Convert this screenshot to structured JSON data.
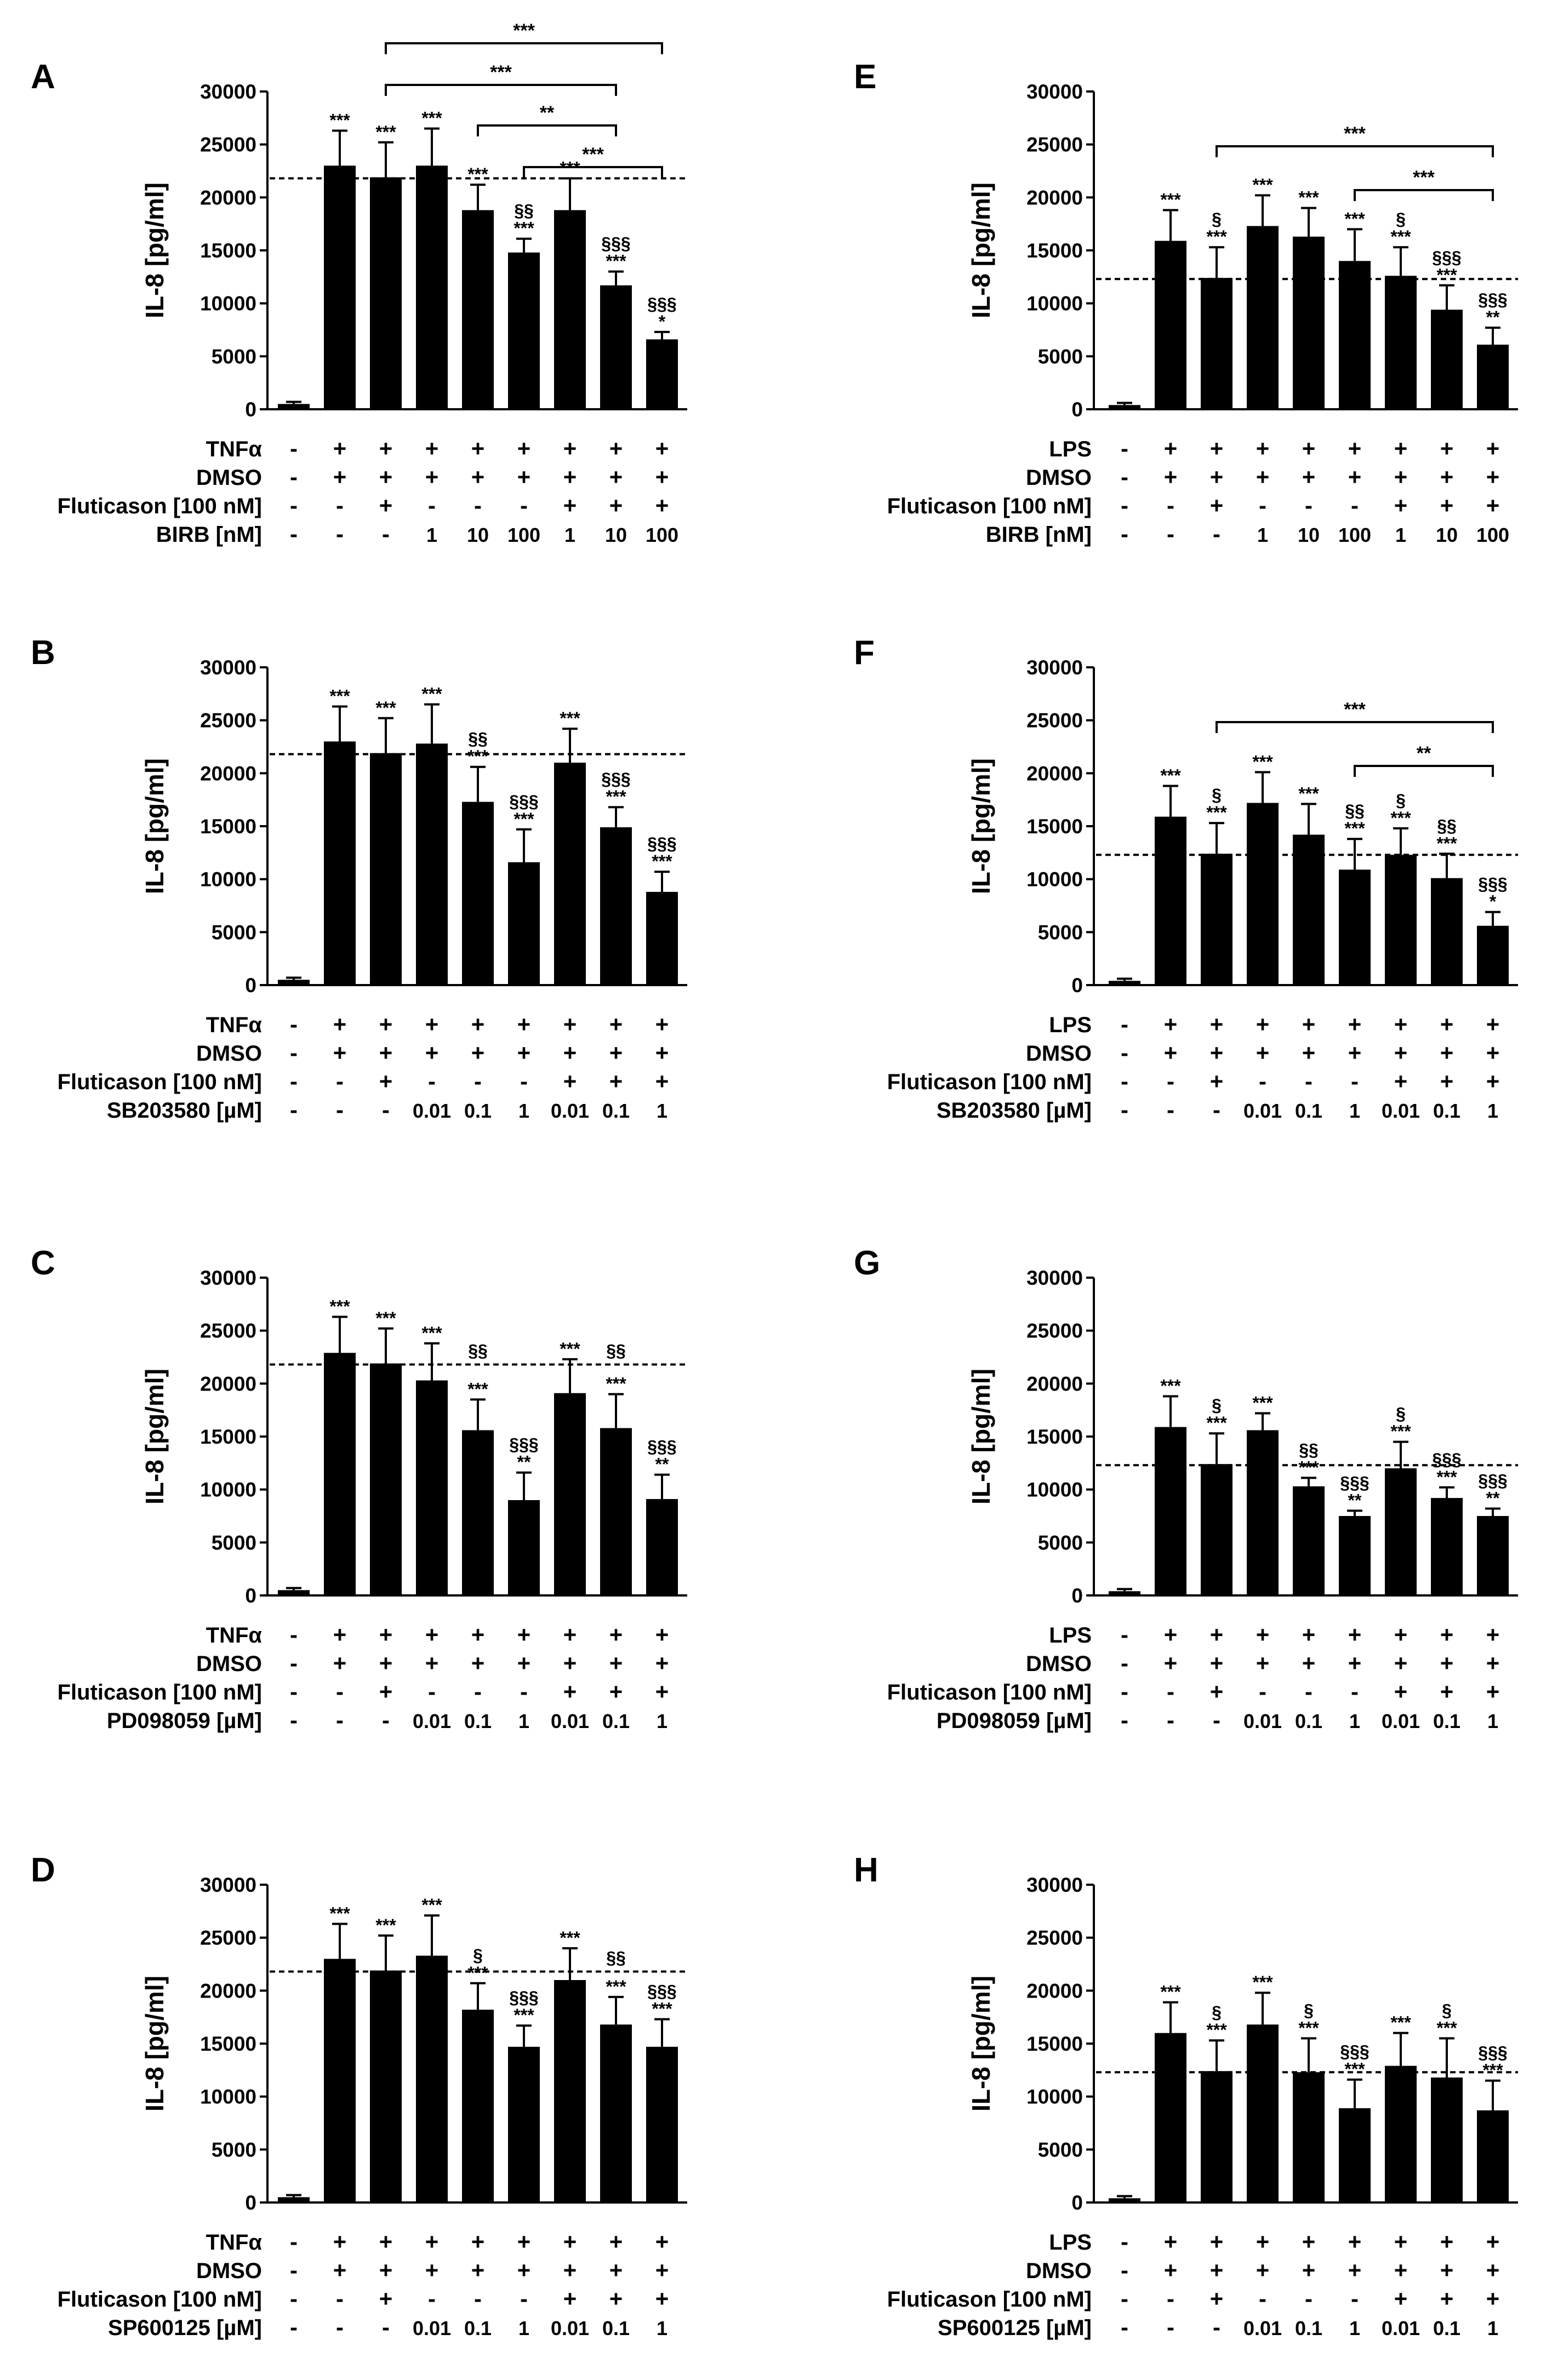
{
  "chart_data": [
    {
      "panel": "A",
      "type": "bar",
      "ylabel": "IL-8 [pg/ml]",
      "yticks": [
        "0",
        "5000",
        "10000",
        "15000",
        "20000",
        "25000",
        "30000"
      ],
      "ylim": [
        0,
        30000
      ],
      "reference_line": 21800,
      "values": [
        500,
        23000,
        21900,
        23000,
        18800,
        14800,
        18800,
        11700,
        6600
      ],
      "errors": [
        200,
        3300,
        3300,
        3500,
        2400,
        1300,
        3000,
        1300,
        700
      ],
      "annotations": [
        [],
        [
          "***"
        ],
        [
          "***"
        ],
        [
          "***"
        ],
        [
          "***"
        ],
        [
          "§§",
          "***"
        ],
        [
          "***"
        ],
        [
          "§§§",
          "***"
        ],
        [
          "§§§",
          "*"
        ]
      ],
      "brackets": [
        {
          "from": 2,
          "to": 8,
          "label": "***"
        },
        {
          "from": 2,
          "to": 7,
          "label": "***"
        },
        {
          "from": 4,
          "to": 7,
          "label": "**"
        },
        {
          "from": 5,
          "to": 8,
          "label": "***"
        }
      ],
      "rows": [
        {
          "label": "TNFα",
          "values": [
            "-",
            "+",
            "+",
            "+",
            "+",
            "+",
            "+",
            "+",
            "+"
          ]
        },
        {
          "label": "DMSO",
          "values": [
            "-",
            "+",
            "+",
            "+",
            "+",
            "+",
            "+",
            "+",
            "+"
          ]
        },
        {
          "label": "Fluticason [100 nM]",
          "values": [
            "-",
            "-",
            "+",
            "-",
            "-",
            "-",
            "+",
            "+",
            "+"
          ]
        },
        {
          "label": "BIRB [nM]",
          "values": [
            "-",
            "-",
            "-",
            "1",
            "10",
            "100",
            "1",
            "10",
            "100"
          ]
        }
      ]
    },
    {
      "panel": "B",
      "type": "bar",
      "ylabel": "IL-8 [pg/ml]",
      "yticks": [
        "0",
        "5000",
        "10000",
        "15000",
        "20000",
        "25000",
        "30000"
      ],
      "ylim": [
        0,
        30000
      ],
      "reference_line": 21800,
      "values": [
        500,
        23000,
        21900,
        22800,
        17300,
        11600,
        21000,
        14900,
        8800
      ],
      "errors": [
        200,
        3300,
        3300,
        3700,
        3300,
        3100,
        3200,
        1900,
        1900
      ],
      "annotations": [
        [],
        [
          "***"
        ],
        [
          "***"
        ],
        [
          "***"
        ],
        [
          "§§",
          "***"
        ],
        [
          "§§§",
          "***"
        ],
        [
          "***"
        ],
        [
          "§§§",
          "***"
        ],
        [
          "§§§",
          "***"
        ]
      ],
      "brackets": [],
      "rows": [
        {
          "label": "TNFα",
          "values": [
            "-",
            "+",
            "+",
            "+",
            "+",
            "+",
            "+",
            "+",
            "+"
          ]
        },
        {
          "label": "DMSO",
          "values": [
            "-",
            "+",
            "+",
            "+",
            "+",
            "+",
            "+",
            "+",
            "+"
          ]
        },
        {
          "label": "Fluticason [100 nM]",
          "values": [
            "-",
            "-",
            "+",
            "-",
            "-",
            "-",
            "+",
            "+",
            "+"
          ]
        },
        {
          "label": "SB203580 [µM]",
          "values": [
            "-",
            "-",
            "-",
            "0.01",
            "0.1",
            "1",
            "0.01",
            "0.1",
            "1"
          ]
        }
      ]
    },
    {
      "panel": "C",
      "type": "bar",
      "ylabel": "IL-8 [pg/ml]",
      "yticks": [
        "0",
        "5000",
        "10000",
        "15000",
        "20000",
        "25000",
        "30000"
      ],
      "ylim": [
        0,
        30000
      ],
      "reference_line": 21800,
      "values": [
        500,
        22900,
        21900,
        20300,
        15600,
        9000,
        19100,
        15800,
        9100
      ],
      "errors": [
        200,
        3400,
        3300,
        3500,
        2900,
        2600,
        3200,
        3200,
        2300
      ],
      "annotations": [
        [],
        [
          "***"
        ],
        [
          "***"
        ],
        [
          "***"
        ],
        [
          "***"
        ],
        [
          "§§§",
          "**"
        ],
        [
          "***"
        ],
        [
          "***"
        ],
        [
          "§§§",
          "**"
        ]
      ],
      "extra_marks": [
        {
          "index": 4,
          "label": "§§"
        },
        {
          "index": 7,
          "label": "§§"
        }
      ],
      "brackets": [],
      "rows": [
        {
          "label": "TNFα",
          "values": [
            "-",
            "+",
            "+",
            "+",
            "+",
            "+",
            "+",
            "+",
            "+"
          ]
        },
        {
          "label": "DMSO",
          "values": [
            "-",
            "+",
            "+",
            "+",
            "+",
            "+",
            "+",
            "+",
            "+"
          ]
        },
        {
          "label": "Fluticason [100 nM]",
          "values": [
            "-",
            "-",
            "+",
            "-",
            "-",
            "-",
            "+",
            "+",
            "+"
          ]
        },
        {
          "label": "PD098059 [µM]",
          "values": [
            "-",
            "-",
            "-",
            "0.01",
            "0.1",
            "1",
            "0.01",
            "0.1",
            "1"
          ]
        }
      ]
    },
    {
      "panel": "D",
      "type": "bar",
      "ylabel": "IL-8 [pg/ml]",
      "yticks": [
        "0",
        "5000",
        "10000",
        "15000",
        "20000",
        "25000",
        "30000"
      ],
      "ylim": [
        0,
        30000
      ],
      "reference_line": 21800,
      "values": [
        500,
        23000,
        21900,
        23300,
        18200,
        14700,
        21000,
        16800,
        14700
      ],
      "errors": [
        200,
        3300,
        3300,
        3800,
        2500,
        2000,
        3000,
        2600,
        2600
      ],
      "annotations": [
        [],
        [
          "***"
        ],
        [
          "***"
        ],
        [
          "***"
        ],
        [
          "§",
          "***"
        ],
        [
          "§§§",
          "***"
        ],
        [
          "***"
        ],
        [
          "***"
        ],
        [
          "§§§",
          "***"
        ]
      ],
      "extra_marks": [
        {
          "index": 7,
          "label": "§§"
        }
      ],
      "brackets": [],
      "rows": [
        {
          "label": "TNFα",
          "values": [
            "-",
            "+",
            "+",
            "+",
            "+",
            "+",
            "+",
            "+",
            "+"
          ]
        },
        {
          "label": "DMSO",
          "values": [
            "-",
            "+",
            "+",
            "+",
            "+",
            "+",
            "+",
            "+",
            "+"
          ]
        },
        {
          "label": "Fluticason [100 nM]",
          "values": [
            "-",
            "-",
            "+",
            "-",
            "-",
            "-",
            "+",
            "+",
            "+"
          ]
        },
        {
          "label": "SP600125 [µM]",
          "values": [
            "-",
            "-",
            "-",
            "0.01",
            "0.1",
            "1",
            "0.01",
            "0.1",
            "1"
          ]
        }
      ]
    },
    {
      "panel": "E",
      "type": "bar",
      "ylabel": "IL-8 [pg/ml]",
      "yticks": [
        "0",
        "5000",
        "10000",
        "15000",
        "20000",
        "25000",
        "30000"
      ],
      "ylim": [
        0,
        30000
      ],
      "reference_line": 12300,
      "values": [
        400,
        15900,
        12400,
        17300,
        16300,
        14000,
        12600,
        9400,
        6100
      ],
      "errors": [
        200,
        2900,
        2900,
        2900,
        2700,
        3000,
        2700,
        2300,
        1600
      ],
      "annotations": [
        [],
        [
          "***"
        ],
        [
          "§",
          "***"
        ],
        [
          "***"
        ],
        [
          "***"
        ],
        [
          "***"
        ],
        [
          "§",
          "***"
        ],
        [
          "§§§",
          "***"
        ],
        [
          "§§§",
          "**"
        ]
      ],
      "brackets": [
        {
          "from": 2,
          "to": 8,
          "label": "***"
        },
        {
          "from": 5,
          "to": 8,
          "label": "***"
        }
      ],
      "rows": [
        {
          "label": "LPS",
          "values": [
            "-",
            "+",
            "+",
            "+",
            "+",
            "+",
            "+",
            "+",
            "+"
          ]
        },
        {
          "label": "DMSO",
          "values": [
            "-",
            "+",
            "+",
            "+",
            "+",
            "+",
            "+",
            "+",
            "+"
          ]
        },
        {
          "label": "Fluticason [100 nM]",
          "values": [
            "-",
            "-",
            "+",
            "-",
            "-",
            "-",
            "+",
            "+",
            "+"
          ]
        },
        {
          "label": "BIRB [nM]",
          "values": [
            "-",
            "-",
            "-",
            "1",
            "10",
            "100",
            "1",
            "10",
            "100"
          ]
        }
      ]
    },
    {
      "panel": "F",
      "type": "bar",
      "ylabel": "IL-8 [pg/ml]",
      "yticks": [
        "0",
        "5000",
        "10000",
        "15000",
        "20000",
        "25000",
        "30000"
      ],
      "ylim": [
        0,
        30000
      ],
      "reference_line": 12300,
      "values": [
        400,
        15900,
        12400,
        17200,
        14200,
        10900,
        12300,
        10100,
        5600
      ],
      "errors": [
        200,
        2900,
        2900,
        2900,
        2900,
        2900,
        2500,
        2300,
        1300
      ],
      "annotations": [
        [],
        [
          "***"
        ],
        [
          "§",
          "***"
        ],
        [
          "***"
        ],
        [
          "***"
        ],
        [
          "§§",
          "***"
        ],
        [
          "§",
          "***"
        ],
        [
          "§§",
          "***"
        ],
        [
          "§§§",
          "*"
        ]
      ],
      "brackets": [
        {
          "from": 2,
          "to": 8,
          "label": "***"
        },
        {
          "from": 5,
          "to": 8,
          "label": "**"
        }
      ],
      "rows": [
        {
          "label": "LPS",
          "values": [
            "-",
            "+",
            "+",
            "+",
            "+",
            "+",
            "+",
            "+",
            "+"
          ]
        },
        {
          "label": "DMSO",
          "values": [
            "-",
            "+",
            "+",
            "+",
            "+",
            "+",
            "+",
            "+",
            "+"
          ]
        },
        {
          "label": "Fluticason [100 nM]",
          "values": [
            "-",
            "-",
            "+",
            "-",
            "-",
            "-",
            "+",
            "+",
            "+"
          ]
        },
        {
          "label": "SB203580 [µM]",
          "values": [
            "-",
            "-",
            "-",
            "0.01",
            "0.1",
            "1",
            "0.01",
            "0.1",
            "1"
          ]
        }
      ]
    },
    {
      "panel": "G",
      "type": "bar",
      "ylabel": "IL-8 [pg/ml]",
      "yticks": [
        "0",
        "5000",
        "10000",
        "15000",
        "20000",
        "25000",
        "30000"
      ],
      "ylim": [
        0,
        30000
      ],
      "reference_line": 12300,
      "values": [
        400,
        15900,
        12400,
        15600,
        10300,
        7500,
        12000,
        9200,
        7500
      ],
      "errors": [
        200,
        2900,
        2900,
        1600,
        800,
        500,
        2500,
        1000,
        700
      ],
      "annotations": [
        [],
        [
          "***"
        ],
        [
          "§",
          "***"
        ],
        [
          "***"
        ],
        [
          "§§",
          "***"
        ],
        [
          "§§§",
          "**"
        ],
        [
          "§",
          "***"
        ],
        [
          "§§§",
          "***"
        ],
        [
          "§§§",
          "**"
        ]
      ],
      "brackets": [],
      "rows": [
        {
          "label": "LPS",
          "values": [
            "-",
            "+",
            "+",
            "+",
            "+",
            "+",
            "+",
            "+",
            "+"
          ]
        },
        {
          "label": "DMSO",
          "values": [
            "-",
            "+",
            "+",
            "+",
            "+",
            "+",
            "+",
            "+",
            "+"
          ]
        },
        {
          "label": "Fluticason [100 nM]",
          "values": [
            "-",
            "-",
            "+",
            "-",
            "-",
            "-",
            "+",
            "+",
            "+"
          ]
        },
        {
          "label": "PD098059 [µM]",
          "values": [
            "-",
            "-",
            "-",
            "0.01",
            "0.1",
            "1",
            "0.01",
            "0.1",
            "1"
          ]
        }
      ]
    },
    {
      "panel": "H",
      "type": "bar",
      "ylabel": "IL-8 [pg/ml]",
      "yticks": [
        "0",
        "5000",
        "10000",
        "15000",
        "20000",
        "25000",
        "30000"
      ],
      "ylim": [
        0,
        30000
      ],
      "reference_line": 12300,
      "values": [
        400,
        16000,
        12400,
        16800,
        12300,
        8900,
        12900,
        11800,
        8700
      ],
      "errors": [
        200,
        2900,
        2900,
        3000,
        3200,
        2700,
        3100,
        3700,
        2800
      ],
      "annotations": [
        [],
        [
          "***"
        ],
        [
          "§",
          "***"
        ],
        [
          "***"
        ],
        [
          "§",
          "***"
        ],
        [
          "§§§",
          "***"
        ],
        [
          "***"
        ],
        [
          "§",
          "***"
        ],
        [
          "§§§",
          "***"
        ]
      ],
      "brackets": [],
      "rows": [
        {
          "label": "LPS",
          "values": [
            "-",
            "+",
            "+",
            "+",
            "+",
            "+",
            "+",
            "+",
            "+"
          ]
        },
        {
          "label": "DMSO",
          "values": [
            "-",
            "+",
            "+",
            "+",
            "+",
            "+",
            "+",
            "+",
            "+"
          ]
        },
        {
          "label": "Fluticason [100 nM]",
          "values": [
            "-",
            "-",
            "+",
            "-",
            "-",
            "-",
            "+",
            "+",
            "+"
          ]
        },
        {
          "label": "SP600125 [µM]",
          "values": [
            "-",
            "-",
            "-",
            "0.01",
            "0.1",
            "1",
            "0.01",
            "0.1",
            "1"
          ]
        }
      ]
    }
  ]
}
